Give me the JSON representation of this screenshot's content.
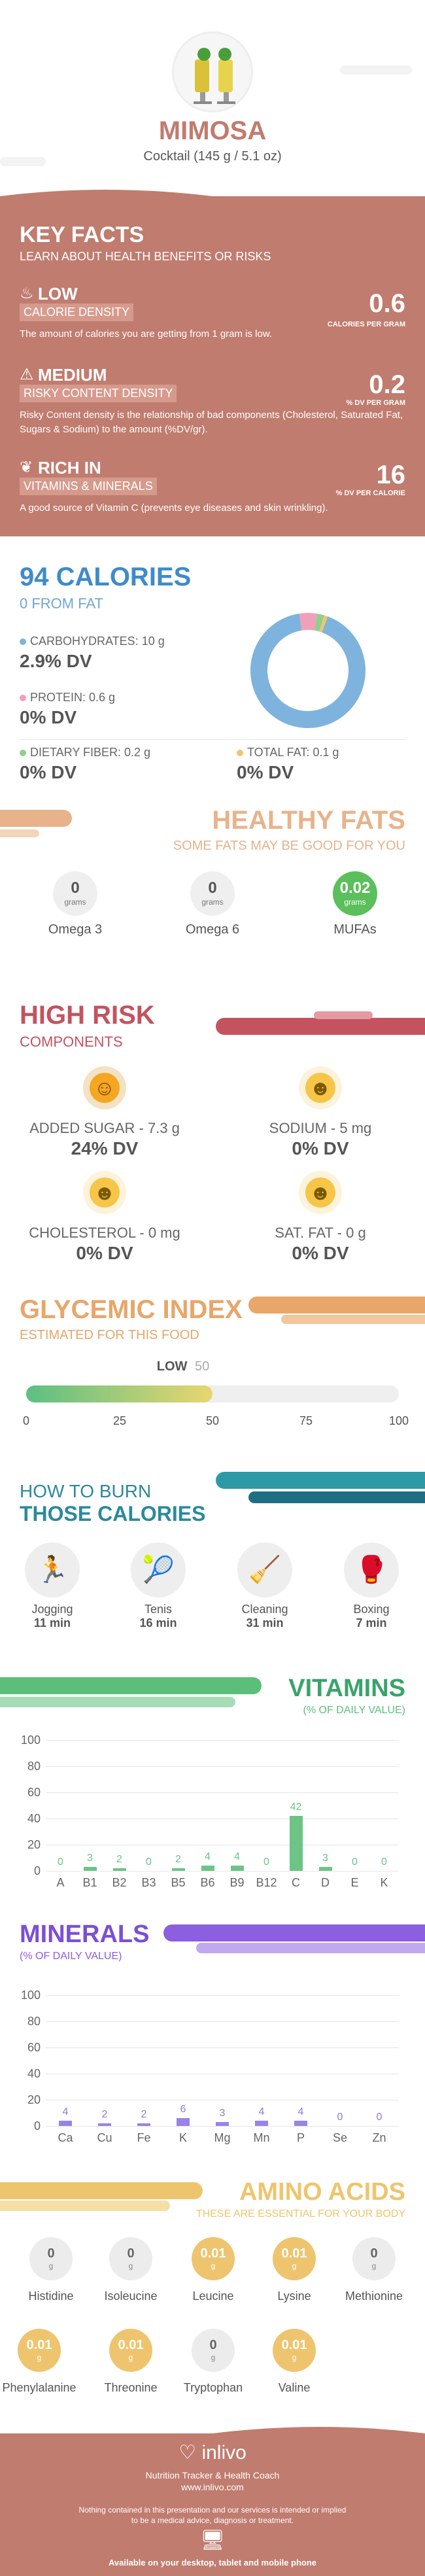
{
  "header": {
    "title": "MIMOSA",
    "subtitle": "Cocktail (145 g / 5.1 oz)"
  },
  "key_facts": {
    "title": "KEY FACTS",
    "subtitle": "LEARN ABOUT HEALTH BENEFITS OR RISKS",
    "items": [
      {
        "line1": "LOW",
        "line2": "CALORIE DENSITY",
        "desc": "The amount of calories you are getting from 1 gram is low.",
        "value": "0.6",
        "unit": "CALORIES PER GRAM",
        "icon": "flame-icon"
      },
      {
        "line1": "MEDIUM",
        "line2": "RISKY CONTENT DENSITY",
        "desc": "Risky Content density is the relationship of bad components (Cholesterol, Saturated Fat, Sugars & Sodium) to the amount (%DV/gr).",
        "value": "0.2",
        "unit": "% DV PER GRAM",
        "icon": "warning-icon"
      },
      {
        "line1": "RICH IN",
        "line2": "VITAMINS & MINERALS",
        "desc": "A good source of Vitamin C (prevents eye diseases and skin wrinkling).",
        "value": "16",
        "unit": "% DV PER CALORIE",
        "icon": "leaf-icon"
      }
    ]
  },
  "calories": {
    "title": "94 CALORIES",
    "subtitle": "0 FROM FAT",
    "macros": [
      {
        "label": "CARBOHYDRATES: 10 g",
        "dv": "2.9% DV",
        "color": "#7eb3dd"
      },
      {
        "label": "PROTEIN: 0.6 g",
        "dv": "0% DV",
        "color": "#f0a0b8"
      },
      {
        "label": "DIETARY FIBER: 0.2 g",
        "dv": "0% DV",
        "color": "#8fd08f"
      },
      {
        "label": "TOTAL FAT: 0.1 g",
        "dv": "0% DV",
        "color": "#f2c46d"
      }
    ],
    "donut": [
      {
        "name": "carbs",
        "value": 92,
        "color": "#7eb3dd"
      },
      {
        "name": "protein",
        "value": 5,
        "color": "#f0a0b8"
      },
      {
        "name": "fiber",
        "value": 2,
        "color": "#8fd08f"
      },
      {
        "name": "fat",
        "value": 1,
        "color": "#f2c46d"
      }
    ]
  },
  "healthy_fats": {
    "title": "HEALTHY FATS",
    "subtitle": "SOME FATS MAY BE GOOD FOR YOU",
    "items": [
      {
        "value": "0",
        "unit": "grams",
        "name": "Omega 3"
      },
      {
        "value": "0",
        "unit": "grams",
        "name": "Omega 6"
      },
      {
        "value": "0.02",
        "unit": "grams",
        "name": "MUFAs"
      }
    ]
  },
  "high_risk": {
    "title": "HIGH RISK",
    "subtitle": "COMPONENTS",
    "items": [
      {
        "label": "ADDED SUGAR - 7.3 g",
        "dv": "24% DV",
        "face": "smile-face-icon"
      },
      {
        "label": "SODIUM - 5 mg",
        "dv": "0% DV",
        "face": "grin-face-icon"
      },
      {
        "label": "CHOLESTEROL - 0 mg",
        "dv": "0% DV",
        "face": "grin-face-icon"
      },
      {
        "label": "SAT. FAT - 0 g",
        "dv": "0% DV",
        "face": "grin-face-icon"
      }
    ]
  },
  "glycemic": {
    "title": "GLYCEMIC INDEX",
    "subtitle": "ESTIMATED FOR THIS FOOD",
    "level": "LOW",
    "value": "50",
    "fraction": 0.5,
    "ticks": [
      "0",
      "25",
      "50",
      "75",
      "100"
    ]
  },
  "burn": {
    "title1": "HOW TO BURN",
    "title2": "THOSE CALORIES",
    "items": [
      {
        "name": "Jogging",
        "time": "11 min"
      },
      {
        "name": "Tenis",
        "time": "16 min"
      },
      {
        "name": "Cleaning",
        "time": "31 min"
      },
      {
        "name": "Boxing",
        "time": "7 min"
      }
    ]
  },
  "vitamins": {
    "title": "VITAMINS",
    "subtitle": "(% OF DAILY VALUE)",
    "chart_data": {
      "type": "bar",
      "categories": [
        "A",
        "B1",
        "B2",
        "B3",
        "B5",
        "B6",
        "B9",
        "B12",
        "C",
        "D",
        "E",
        "K"
      ],
      "values": [
        0,
        3,
        2,
        0,
        2,
        4,
        4,
        0,
        42,
        3,
        0,
        0
      ],
      "yticks": [
        "0",
        "20",
        "40",
        "60",
        "80",
        "100"
      ],
      "ylim": [
        0,
        100
      ]
    }
  },
  "minerals": {
    "title": "MINERALS",
    "subtitle": "(% OF DAILY VALUE)",
    "chart_data": {
      "type": "bar",
      "categories": [
        "Ca",
        "Cu",
        "Fe",
        "K",
        "Mg",
        "Mn",
        "P",
        "Se",
        "Zn"
      ],
      "values": [
        4,
        2,
        2,
        6,
        3,
        4,
        4,
        0,
        0
      ],
      "yticks": [
        "0",
        "20",
        "40",
        "60",
        "80",
        "100"
      ],
      "ylim": [
        0,
        100
      ]
    }
  },
  "amino": {
    "title": "AMINO ACIDS",
    "subtitle": "THESE ARE ESSENTIAL FOR YOUR BODY",
    "items": [
      {
        "value": "0",
        "unit": "g",
        "name": "Histidine",
        "color": "#ececec"
      },
      {
        "value": "0",
        "unit": "g",
        "name": "Isoleucine",
        "color": "#ececec"
      },
      {
        "value": "0.01",
        "unit": "g",
        "name": "Leucine",
        "color": "#eec56e"
      },
      {
        "value": "0.01",
        "unit": "g",
        "name": "Lysine",
        "color": "#eec56e"
      },
      {
        "value": "0",
        "unit": "g",
        "name": "Methionine",
        "color": "#ececec"
      },
      {
        "value": "0.01",
        "unit": "g",
        "name": "Phenylalanine",
        "color": "#eec56e"
      },
      {
        "value": "0.01",
        "unit": "g",
        "name": "Threonine",
        "color": "#eec56e"
      },
      {
        "value": "0",
        "unit": "g",
        "name": "Tryptophan",
        "color": "#ececec"
      },
      {
        "value": "0.01",
        "unit": "g",
        "name": "Valine",
        "color": "#eec56e"
      }
    ]
  },
  "footer": {
    "brand": "inlivo",
    "tagline": "Nutrition Tracker & Health Coach",
    "url": "www.inlivo.com",
    "disclaimer1": "Nothing contained in this presentation and our services is intended or implied",
    "disclaimer2": "to be a medical advice, diagnosis or treatment.",
    "available": "Available on your desktop, tablet and mobile phone"
  }
}
